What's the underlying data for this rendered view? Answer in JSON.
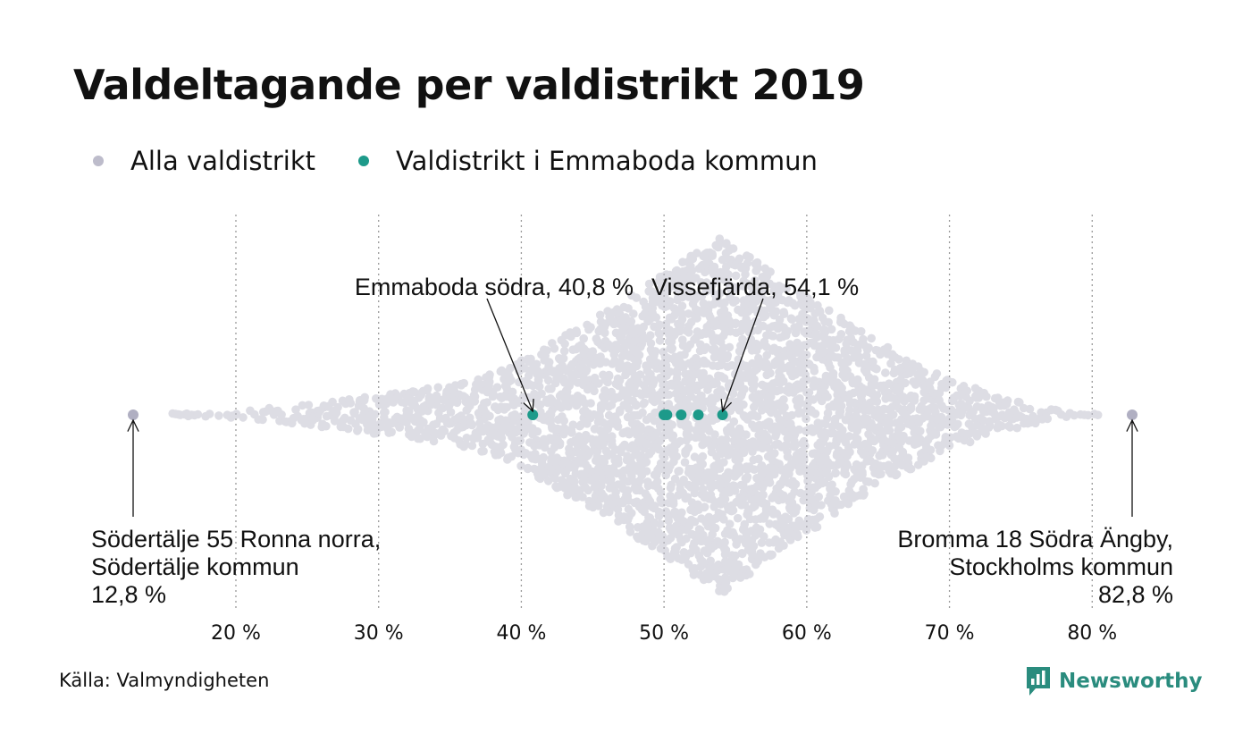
{
  "title": "Valdeltagande per valdistrikt 2019",
  "legend": [
    {
      "label": "Alla valdistrikt",
      "color": "#bdbccb"
    },
    {
      "label": "Valdistrikt i Emmaboda kommun",
      "color": "#1d9a8a"
    }
  ],
  "source": "Källa: Valmyndigheten",
  "brand": {
    "name": "Newsworthy",
    "color": "#2a8c7e",
    "icon": "newsworthy-logo-icon"
  },
  "colors": {
    "all": "#bdbccb",
    "highlight": "#1d9a8a",
    "grid": "#9a9a9a",
    "text": "#111111"
  },
  "chart_data": {
    "type": "scatter",
    "subtype": "beeswarm",
    "xlim": [
      12.8,
      82.8
    ],
    "xticks": [
      20,
      30,
      40,
      50,
      60,
      70,
      80
    ],
    "xtick_labels": [
      "20 %",
      "30 %",
      "40 %",
      "50 %",
      "60 %",
      "70 %",
      "80 %"
    ],
    "grid": "vertical-dotted",
    "series": [
      {
        "name": "Alla valdistrikt",
        "color": "#bdbccb",
        "distribution": {
          "min": 12.8,
          "mode": 54,
          "max": 82.8
        },
        "extremes": [
          12.8,
          82.8
        ]
      },
      {
        "name": "Valdistrikt i Emmaboda kommun",
        "color": "#1d9a8a",
        "values": [
          40.8,
          50.0,
          50.2,
          51.2,
          52.4,
          54.1
        ]
      }
    ],
    "annotations": [
      {
        "lines": [
          "Emmaboda södra, 40,8 %"
        ],
        "x": 40.8
      },
      {
        "lines": [
          "Vissefjärda, 54,1 %"
        ],
        "x": 54.1
      },
      {
        "lines": [
          "Södertälje 55 Ronna norra,",
          "Södertälje kommun",
          "12,8 %"
        ],
        "x": 12.8
      },
      {
        "lines": [
          "Bromma 18 Södra Ängby,",
          "Stockholms kommun",
          "82,8 %"
        ],
        "x": 82.8
      }
    ]
  }
}
